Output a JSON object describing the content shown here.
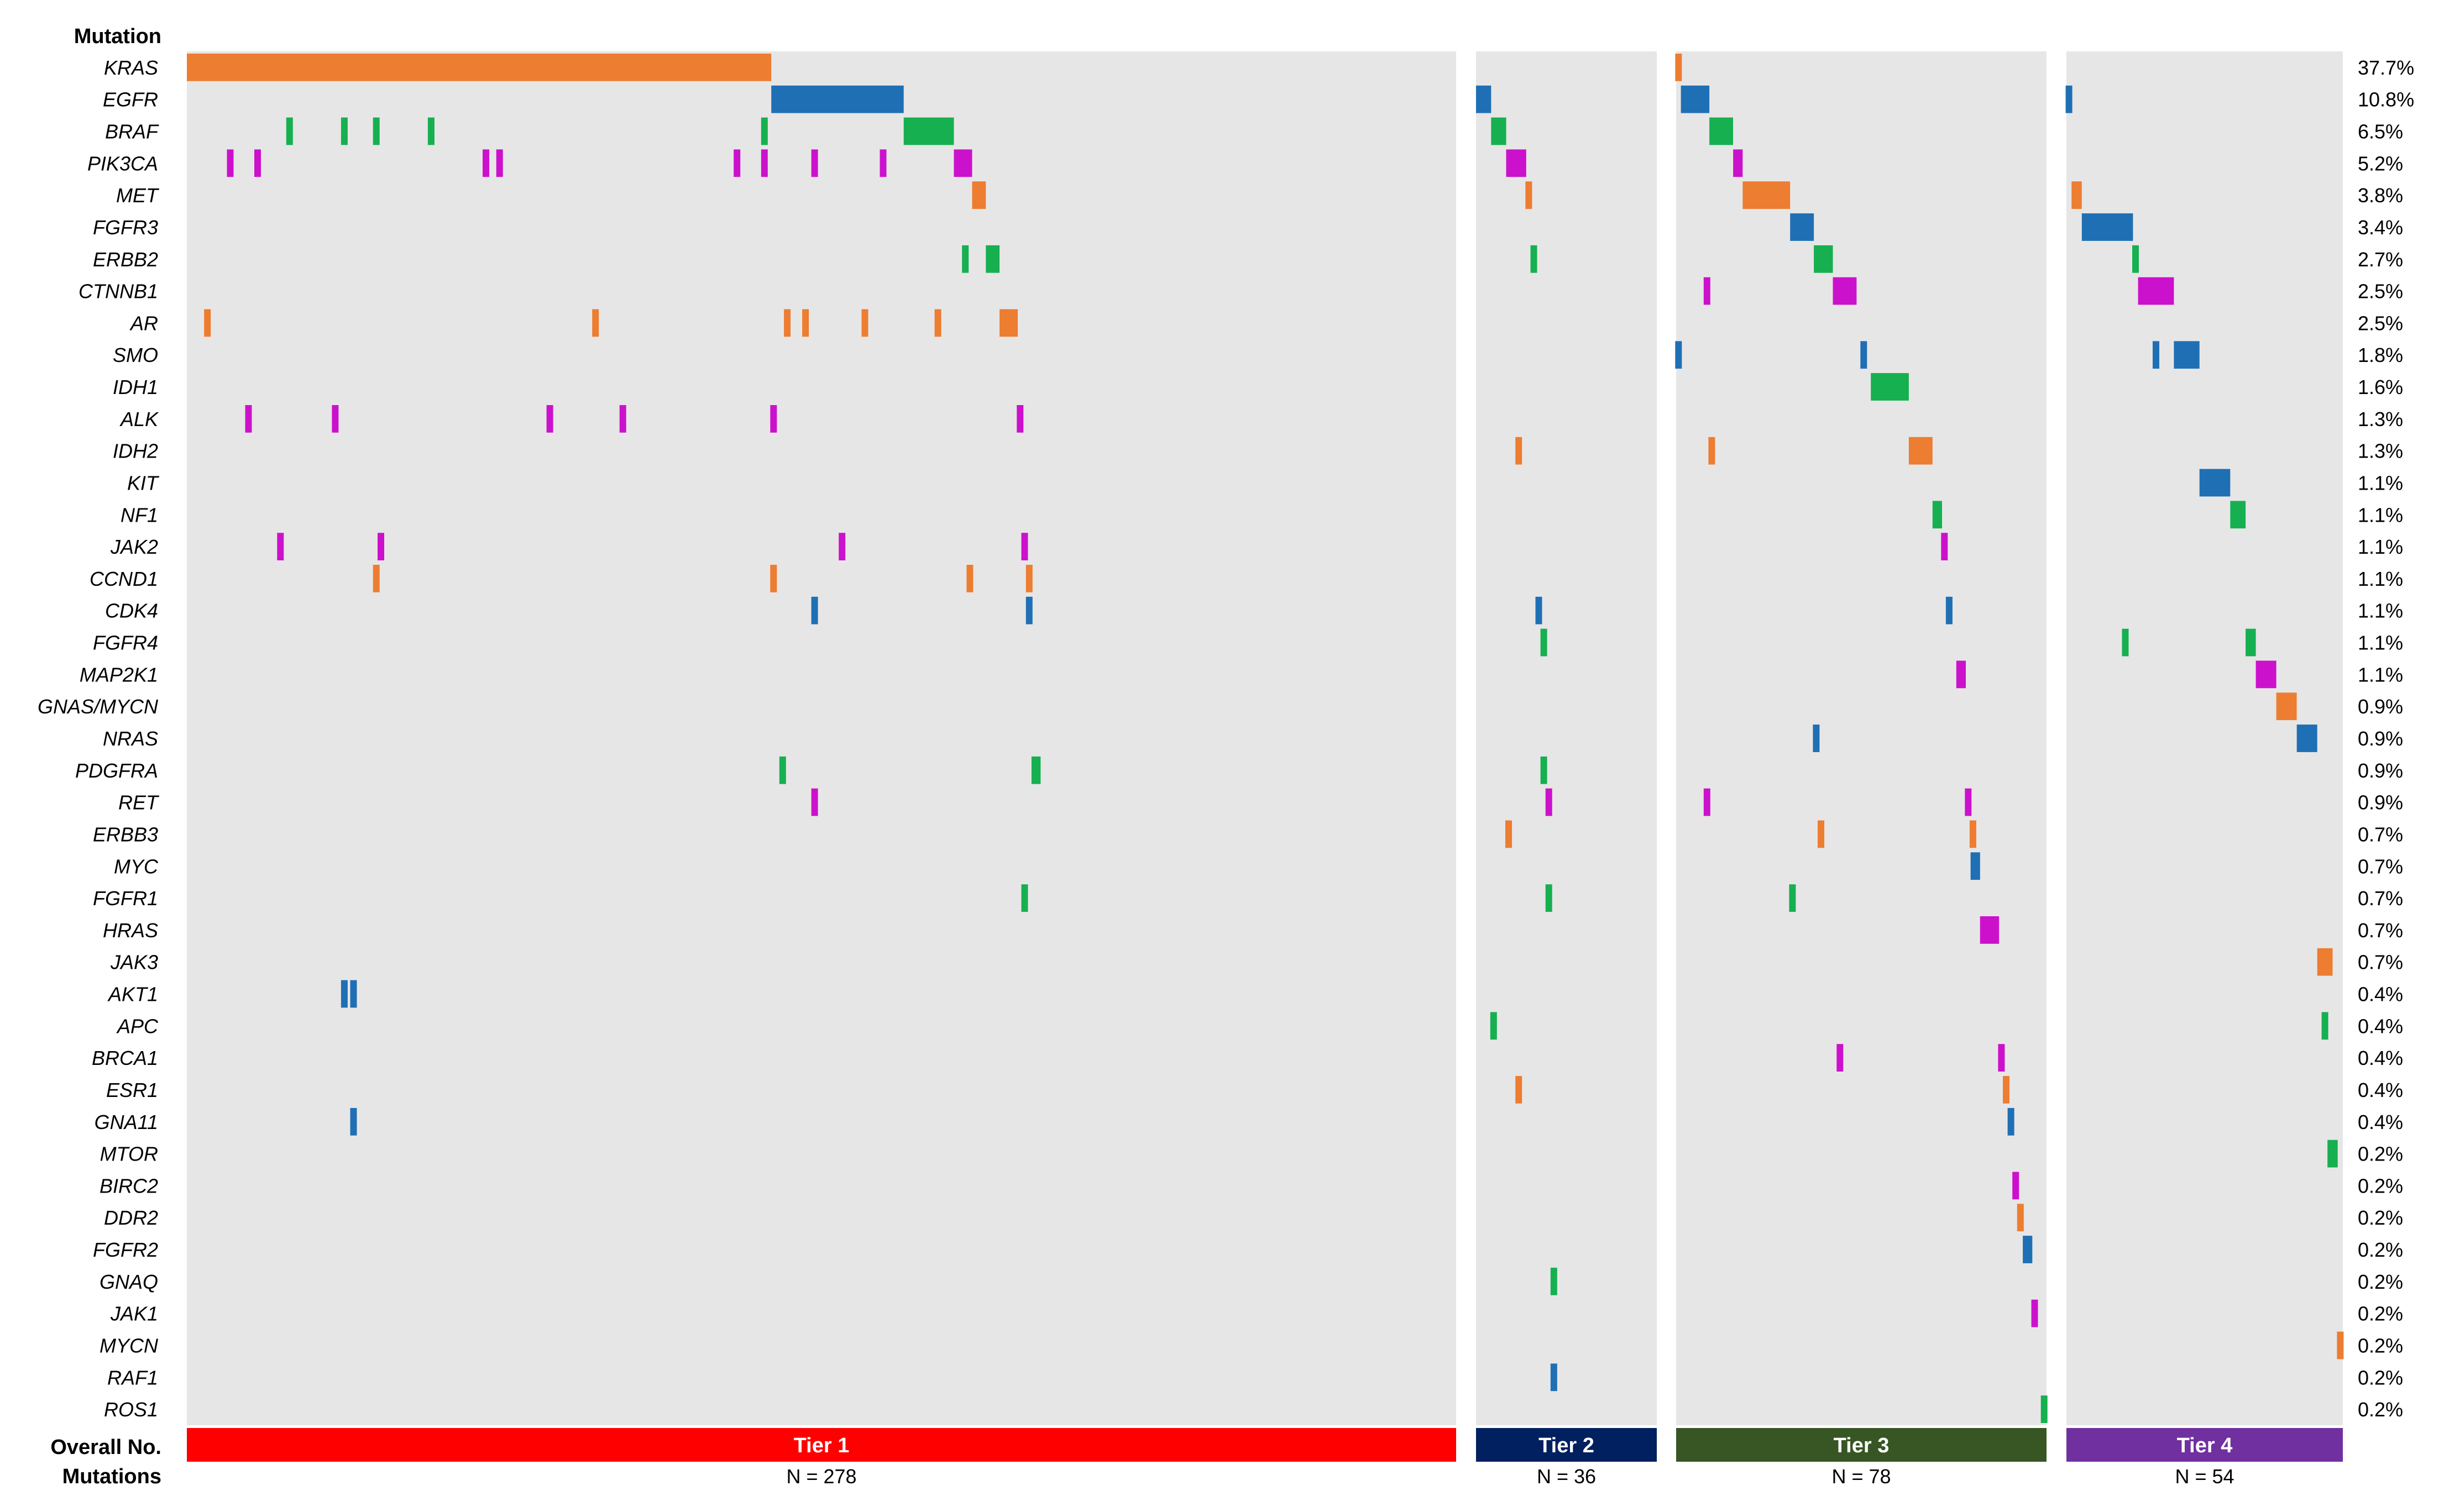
{
  "chart_data": {
    "type": "heatmap",
    "title": "",
    "header_label": "Mutation",
    "footer_labels": [
      "Overall No.",
      "Mutations"
    ],
    "genes": [
      "KRAS",
      "EGFR",
      "BRAF",
      "PIK3CA",
      "MET",
      "FGFR3",
      "ERBB2",
      "CTNNB1",
      "AR",
      "SMO",
      "IDH1",
      "ALK",
      "IDH2",
      "KIT",
      "NF1",
      "JAK2",
      "CCND1",
      "CDK4",
      "FGFR4",
      "MAP2K1",
      "GNAS/MYCN",
      "NRAS",
      "PDGFRA",
      "RET",
      "ERBB3",
      "MYC",
      "FGFR1",
      "HRAS",
      "JAK3",
      "AKT1",
      "APC",
      "BRCA1",
      "ESR1",
      "GNA11",
      "MTOR",
      "BIRC2",
      "DDR2",
      "FGFR2",
      "GNAQ",
      "JAK1",
      "MYCN",
      "RAF1",
      "ROS1"
    ],
    "percentages": [
      "37.7%",
      "10.8%",
      "6.5%",
      "5.2%",
      "3.8%",
      "3.4%",
      "2.7%",
      "2.5%",
      "2.5%",
      "1.8%",
      "1.6%",
      "1.3%",
      "1.3%",
      "1.1%",
      "1.1%",
      "1.1%",
      "1.1%",
      "1.1%",
      "1.1%",
      "1.1%",
      "0.9%",
      "0.9%",
      "0.9%",
      "0.9%",
      "0.7%",
      "0.7%",
      "0.7%",
      "0.7%",
      "0.7%",
      "0.4%",
      "0.4%",
      "0.4%",
      "0.4%",
      "0.4%",
      "0.2%",
      "0.2%",
      "0.2%",
      "0.2%",
      "0.2%",
      "0.2%",
      "0.2%",
      "0.2%",
      "0.2%"
    ],
    "mark_colors": {
      "orange": "#ED7D31",
      "blue": "#1F6FB5",
      "green": "#16B050",
      "magenta": "#CC11CC"
    },
    "panel_background": "#E7E6E6",
    "tiers": [
      {
        "name": "Tier 1",
        "n_label": "N = 278",
        "n": 278,
        "color": "#FF0000",
        "marks": [
          {
            "g": 0,
            "s": 0,
            "w": 128,
            "c": "orange"
          },
          {
            "g": 1,
            "s": 128,
            "w": 29,
            "c": "blue"
          },
          {
            "g": 2,
            "s": 22,
            "w": 1,
            "c": "green"
          },
          {
            "g": 2,
            "s": 34,
            "w": 1,
            "c": "green"
          },
          {
            "g": 2,
            "s": 41,
            "w": 1,
            "c": "green"
          },
          {
            "g": 2,
            "s": 53,
            "w": 1,
            "c": "green"
          },
          {
            "g": 2,
            "s": 126,
            "w": 1,
            "c": "green"
          },
          {
            "g": 2,
            "s": 157,
            "w": 11,
            "c": "green"
          },
          {
            "g": 3,
            "s": 9,
            "w": 1,
            "c": "magenta"
          },
          {
            "g": 3,
            "s": 15,
            "w": 1,
            "c": "magenta"
          },
          {
            "g": 3,
            "s": 65,
            "w": 1,
            "c": "magenta"
          },
          {
            "g": 3,
            "s": 68,
            "w": 1,
            "c": "magenta"
          },
          {
            "g": 3,
            "s": 120,
            "w": 1,
            "c": "magenta"
          },
          {
            "g": 3,
            "s": 126,
            "w": 1,
            "c": "magenta"
          },
          {
            "g": 3,
            "s": 137,
            "w": 1,
            "c": "magenta"
          },
          {
            "g": 3,
            "s": 152,
            "w": 1,
            "c": "magenta"
          },
          {
            "g": 3,
            "s": 168,
            "w": 4,
            "c": "magenta"
          },
          {
            "g": 4,
            "s": 172,
            "w": 3,
            "c": "orange"
          },
          {
            "g": 6,
            "s": 170,
            "w": 1,
            "c": "green"
          },
          {
            "g": 6,
            "s": 175,
            "w": 3,
            "c": "green"
          },
          {
            "g": 8,
            "s": 4,
            "w": 1,
            "c": "orange"
          },
          {
            "g": 8,
            "s": 89,
            "w": 1,
            "c": "orange"
          },
          {
            "g": 8,
            "s": 131,
            "w": 1,
            "c": "orange"
          },
          {
            "g": 8,
            "s": 135,
            "w": 1,
            "c": "orange"
          },
          {
            "g": 8,
            "s": 148,
            "w": 1,
            "c": "orange"
          },
          {
            "g": 8,
            "s": 164,
            "w": 1,
            "c": "orange"
          },
          {
            "g": 8,
            "s": 178,
            "w": 4,
            "c": "orange"
          },
          {
            "g": 11,
            "s": 13,
            "w": 1,
            "c": "magenta"
          },
          {
            "g": 11,
            "s": 32,
            "w": 1,
            "c": "magenta"
          },
          {
            "g": 11,
            "s": 79,
            "w": 1,
            "c": "magenta"
          },
          {
            "g": 11,
            "s": 95,
            "w": 1,
            "c": "magenta"
          },
          {
            "g": 11,
            "s": 128,
            "w": 1,
            "c": "magenta"
          },
          {
            "g": 11,
            "s": 182,
            "w": 1,
            "c": "magenta"
          },
          {
            "g": 15,
            "s": 20,
            "w": 1,
            "c": "magenta"
          },
          {
            "g": 15,
            "s": 42,
            "w": 1,
            "c": "magenta"
          },
          {
            "g": 15,
            "s": 143,
            "w": 1,
            "c": "magenta"
          },
          {
            "g": 15,
            "s": 183,
            "w": 1,
            "c": "magenta"
          },
          {
            "g": 16,
            "s": 41,
            "w": 1,
            "c": "orange"
          },
          {
            "g": 16,
            "s": 128,
            "w": 1,
            "c": "orange"
          },
          {
            "g": 16,
            "s": 171,
            "w": 1,
            "c": "orange"
          },
          {
            "g": 16,
            "s": 184,
            "w": 1,
            "c": "orange"
          },
          {
            "g": 17,
            "s": 137,
            "w": 1,
            "c": "blue"
          },
          {
            "g": 17,
            "s": 184,
            "w": 1,
            "c": "blue"
          },
          {
            "g": 22,
            "s": 130,
            "w": 1,
            "c": "green"
          },
          {
            "g": 22,
            "s": 185,
            "w": 2,
            "c": "green"
          },
          {
            "g": 23,
            "s": 137,
            "w": 1,
            "c": "magenta"
          },
          {
            "g": 26,
            "s": 183,
            "w": 1,
            "c": "green"
          },
          {
            "g": 29,
            "s": 34,
            "w": 1,
            "c": "blue"
          },
          {
            "g": 29,
            "s": 36,
            "w": 1,
            "c": "blue"
          },
          {
            "g": 33,
            "s": 36,
            "w": 1,
            "c": "blue"
          }
        ]
      },
      {
        "name": "Tier 2",
        "n_label": "N = 36",
        "n": 36,
        "color": "#002060",
        "marks": [
          {
            "g": 1,
            "s": 0,
            "w": 3,
            "c": "blue"
          },
          {
            "g": 2,
            "s": 3,
            "w": 3,
            "c": "green"
          },
          {
            "g": 3,
            "s": 6,
            "w": 4,
            "c": "magenta"
          },
          {
            "g": 4,
            "s": 10,
            "w": 1,
            "c": "orange"
          },
          {
            "g": 6,
            "s": 11,
            "w": 1,
            "c": "green"
          },
          {
            "g": 12,
            "s": 8,
            "w": 1,
            "c": "orange"
          },
          {
            "g": 17,
            "s": 12,
            "w": 1,
            "c": "blue"
          },
          {
            "g": 18,
            "s": 13,
            "w": 1,
            "c": "green"
          },
          {
            "g": 22,
            "s": 13,
            "w": 1,
            "c": "green"
          },
          {
            "g": 23,
            "s": 14,
            "w": 1,
            "c": "magenta"
          },
          {
            "g": 24,
            "s": 6,
            "w": 1,
            "c": "orange"
          },
          {
            "g": 26,
            "s": 14,
            "w": 1,
            "c": "green"
          },
          {
            "g": 30,
            "s": 3,
            "w": 1,
            "c": "green"
          },
          {
            "g": 32,
            "s": 8,
            "w": 1,
            "c": "orange"
          },
          {
            "g": 38,
            "s": 15,
            "w": 1,
            "c": "green"
          },
          {
            "g": 41,
            "s": 15,
            "w": 1,
            "c": "blue"
          }
        ]
      },
      {
        "name": "Tier 3",
        "n_label": "N = 78",
        "n": 78,
        "color": "#375623",
        "marks": [
          {
            "g": 0,
            "s": 0,
            "w": 1,
            "c": "orange"
          },
          {
            "g": 1,
            "s": 1,
            "w": 6,
            "c": "blue"
          },
          {
            "g": 2,
            "s": 7,
            "w": 5,
            "c": "green"
          },
          {
            "g": 3,
            "s": 12,
            "w": 2,
            "c": "magenta"
          },
          {
            "g": 4,
            "s": 14,
            "w": 10,
            "c": "orange"
          },
          {
            "g": 5,
            "s": 24,
            "w": 5,
            "c": "blue"
          },
          {
            "g": 6,
            "s": 29,
            "w": 4,
            "c": "green"
          },
          {
            "g": 7,
            "s": 6,
            "w": 1,
            "c": "magenta"
          },
          {
            "g": 7,
            "s": 33,
            "w": 5,
            "c": "magenta"
          },
          {
            "g": 9,
            "s": 0,
            "w": 1,
            "c": "blue"
          },
          {
            "g": 9,
            "s": 39,
            "w": 1,
            "c": "blue"
          },
          {
            "g": 10,
            "s": 41,
            "w": 8,
            "c": "green"
          },
          {
            "g": 12,
            "s": 7,
            "w": 1,
            "c": "orange"
          },
          {
            "g": 12,
            "s": 49,
            "w": 5,
            "c": "orange"
          },
          {
            "g": 14,
            "s": 54,
            "w": 2,
            "c": "green"
          },
          {
            "g": 15,
            "s": 56,
            "w": 1,
            "c": "magenta"
          },
          {
            "g": 17,
            "s": 57,
            "w": 1,
            "c": "blue"
          },
          {
            "g": 19,
            "s": 59,
            "w": 2,
            "c": "magenta"
          },
          {
            "g": 21,
            "s": 29,
            "w": 1,
            "c": "blue"
          },
          {
            "g": 23,
            "s": 6,
            "w": 1,
            "c": "magenta"
          },
          {
            "g": 23,
            "s": 61,
            "w": 1,
            "c": "magenta"
          },
          {
            "g": 24,
            "s": 30,
            "w": 1,
            "c": "orange"
          },
          {
            "g": 24,
            "s": 62,
            "w": 1,
            "c": "orange"
          },
          {
            "g": 25,
            "s": 62,
            "w": 2,
            "c": "blue"
          },
          {
            "g": 26,
            "s": 24,
            "w": 1,
            "c": "green"
          },
          {
            "g": 27,
            "s": 64,
            "w": 4,
            "c": "magenta"
          },
          {
            "g": 31,
            "s": 34,
            "w": 1,
            "c": "magenta"
          },
          {
            "g": 31,
            "s": 68,
            "w": 1,
            "c": "magenta"
          },
          {
            "g": 32,
            "s": 69,
            "w": 1,
            "c": "orange"
          },
          {
            "g": 33,
            "s": 70,
            "w": 1,
            "c": "blue"
          },
          {
            "g": 35,
            "s": 71,
            "w": 1,
            "c": "magenta"
          },
          {
            "g": 36,
            "s": 72,
            "w": 1,
            "c": "orange"
          },
          {
            "g": 37,
            "s": 73,
            "w": 2,
            "c": "blue"
          },
          {
            "g": 39,
            "s": 75,
            "w": 1,
            "c": "magenta"
          },
          {
            "g": 42,
            "s": 77,
            "w": 1,
            "c": "green"
          }
        ]
      },
      {
        "name": "Tier 4",
        "n_label": "N = 54",
        "n": 54,
        "color": "#7030A0",
        "marks": [
          {
            "g": 1,
            "s": 0,
            "w": 1,
            "c": "blue"
          },
          {
            "g": 4,
            "s": 1,
            "w": 2,
            "c": "orange"
          },
          {
            "g": 5,
            "s": 3,
            "w": 10,
            "c": "blue"
          },
          {
            "g": 6,
            "s": 13,
            "w": 1,
            "c": "green"
          },
          {
            "g": 7,
            "s": 14,
            "w": 7,
            "c": "magenta"
          },
          {
            "g": 9,
            "s": 17,
            "w": 1,
            "c": "blue"
          },
          {
            "g": 9,
            "s": 21,
            "w": 5,
            "c": "blue"
          },
          {
            "g": 13,
            "s": 26,
            "w": 6,
            "c": "blue"
          },
          {
            "g": 14,
            "s": 32,
            "w": 3,
            "c": "green"
          },
          {
            "g": 18,
            "s": 11,
            "w": 1,
            "c": "green"
          },
          {
            "g": 18,
            "s": 35,
            "w": 2,
            "c": "green"
          },
          {
            "g": 19,
            "s": 37,
            "w": 4,
            "c": "magenta"
          },
          {
            "g": 20,
            "s": 41,
            "w": 4,
            "c": "orange"
          },
          {
            "g": 21,
            "s": 45,
            "w": 4,
            "c": "blue"
          },
          {
            "g": 28,
            "s": 49,
            "w": 3,
            "c": "orange"
          },
          {
            "g": 30,
            "s": 50,
            "w": 1,
            "c": "green"
          },
          {
            "g": 34,
            "s": 51,
            "w": 2,
            "c": "green"
          },
          {
            "g": 40,
            "s": 53,
            "w": 1,
            "c": "orange"
          }
        ]
      }
    ]
  }
}
